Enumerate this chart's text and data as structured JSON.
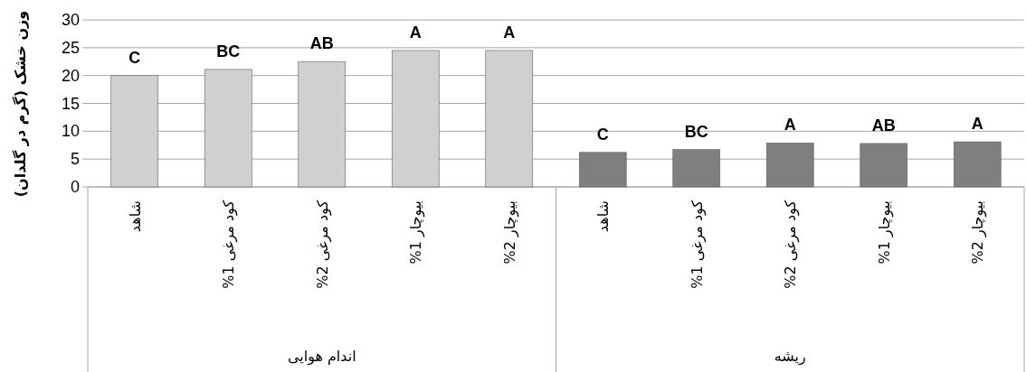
{
  "chart_data": {
    "type": "bar",
    "ylabel": "وزن خشک (گرم در گلدان)",
    "categories": [
      "شاهد",
      "کود مرغی 1%",
      "کود مرغی 2%",
      "بیوچار 1%",
      "بیوچار 2%",
      "شاهد",
      "کود مرغی 1%",
      "کود مرغی 2%",
      "بیوچار 1%",
      "بیوچار 2%"
    ],
    "values": [
      20,
      21.1,
      22.5,
      24.5,
      24.5,
      6.2,
      6.7,
      7.9,
      7.8,
      8.1
    ],
    "colors": [
      "#d0d0d0",
      "#d0d0d0",
      "#d0d0d0",
      "#d0d0d0",
      "#d0d0d0",
      "#7f7f7f",
      "#7f7f7f",
      "#7f7f7f",
      "#7f7f7f",
      "#7f7f7f"
    ],
    "value_labels": [
      "C",
      "BC",
      "AB",
      "A",
      "A",
      "C",
      "BC",
      "A",
      "AB",
      "A"
    ],
    "annotations": [
      "اندام هوایی",
      "ریشه"
    ],
    "ylim": [
      0,
      30
    ],
    "yticks": [
      0,
      5,
      10,
      15,
      20,
      25,
      30
    ],
    "grid": "y"
  }
}
